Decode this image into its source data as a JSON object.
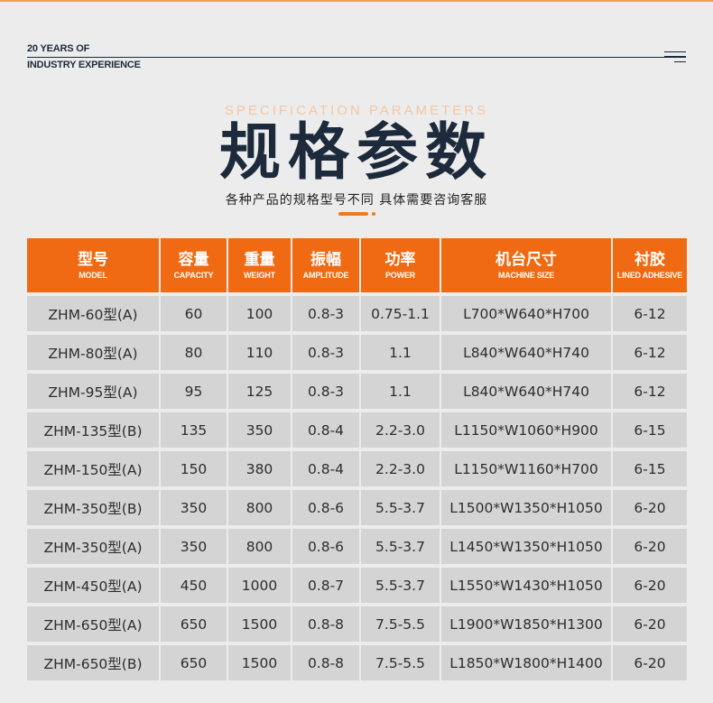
{
  "header": {
    "years_line1": "20 YEARS OF",
    "years_line2": "INDUSTRY EXPERIENCE"
  },
  "title": {
    "en": "SPECIFICATION PARAMETERS",
    "cn": "规格参数",
    "subtitle": "各种产品的规格型号不同 具体需要咨询客服"
  },
  "table": {
    "columns": [
      {
        "cn": "型号",
        "en": "MODEL"
      },
      {
        "cn": "容量",
        "en": "CAPACITY"
      },
      {
        "cn": "重量",
        "en": "WEIGHT"
      },
      {
        "cn": "振幅",
        "en": "AMPLITUDE"
      },
      {
        "cn": "功率",
        "en": "POWER"
      },
      {
        "cn": "机台尺寸",
        "en": "MACHINE SIZE"
      },
      {
        "cn": "衬胶",
        "en": "LINED ADHESIVE"
      }
    ],
    "rows": [
      [
        "ZHM-60型(A)",
        "60",
        "100",
        "0.8-3",
        "0.75-1.1",
        "L700*W640*H700",
        "6-12"
      ],
      [
        "ZHM-80型(A)",
        "80",
        "110",
        "0.8-3",
        "1.1",
        "L840*W640*H740",
        "6-12"
      ],
      [
        "ZHM-95型(A)",
        "95",
        "125",
        "0.8-3",
        "1.1",
        "L840*W640*H740",
        "6-12"
      ],
      [
        "ZHM-135型(B)",
        "135",
        "350",
        "0.8-4",
        "2.2-3.0",
        "L1150*W1060*H900",
        "6-15"
      ],
      [
        "ZHM-150型(A)",
        "150",
        "380",
        "0.8-4",
        "2.2-3.0",
        "L1150*W1160*H700",
        "6-15"
      ],
      [
        "ZHM-350型(B)",
        "350",
        "800",
        "0.8-6",
        "5.5-3.7",
        "L1500*W1350*H1050",
        "6-20"
      ],
      [
        "ZHM-350型(A)",
        "350",
        "800",
        "0.8-6",
        "5.5-3.7",
        "L1450*W1350*H1050",
        "6-20"
      ],
      [
        "ZHM-450型(A)",
        "450",
        "1000",
        "0.8-7",
        "5.5-3.7",
        "L1550*W1430*H1050",
        "6-20"
      ],
      [
        "ZHM-650型(A)",
        "650",
        "1500",
        "0.8-8",
        "7.5-5.5",
        "L1900*W1850*H1300",
        "6-20"
      ],
      [
        "ZHM-650型(B)",
        "650",
        "1500",
        "0.8-8",
        "7.5-5.5",
        "L1850*W1800*H1400",
        "6-20"
      ]
    ]
  },
  "colors": {
    "accent": "#ef6a12",
    "navy": "#1c2a3b",
    "row_bg": "#d4d4d4",
    "page_bg": "#ececec"
  },
  "icons": {
    "menu": "menu-lines-icon"
  }
}
